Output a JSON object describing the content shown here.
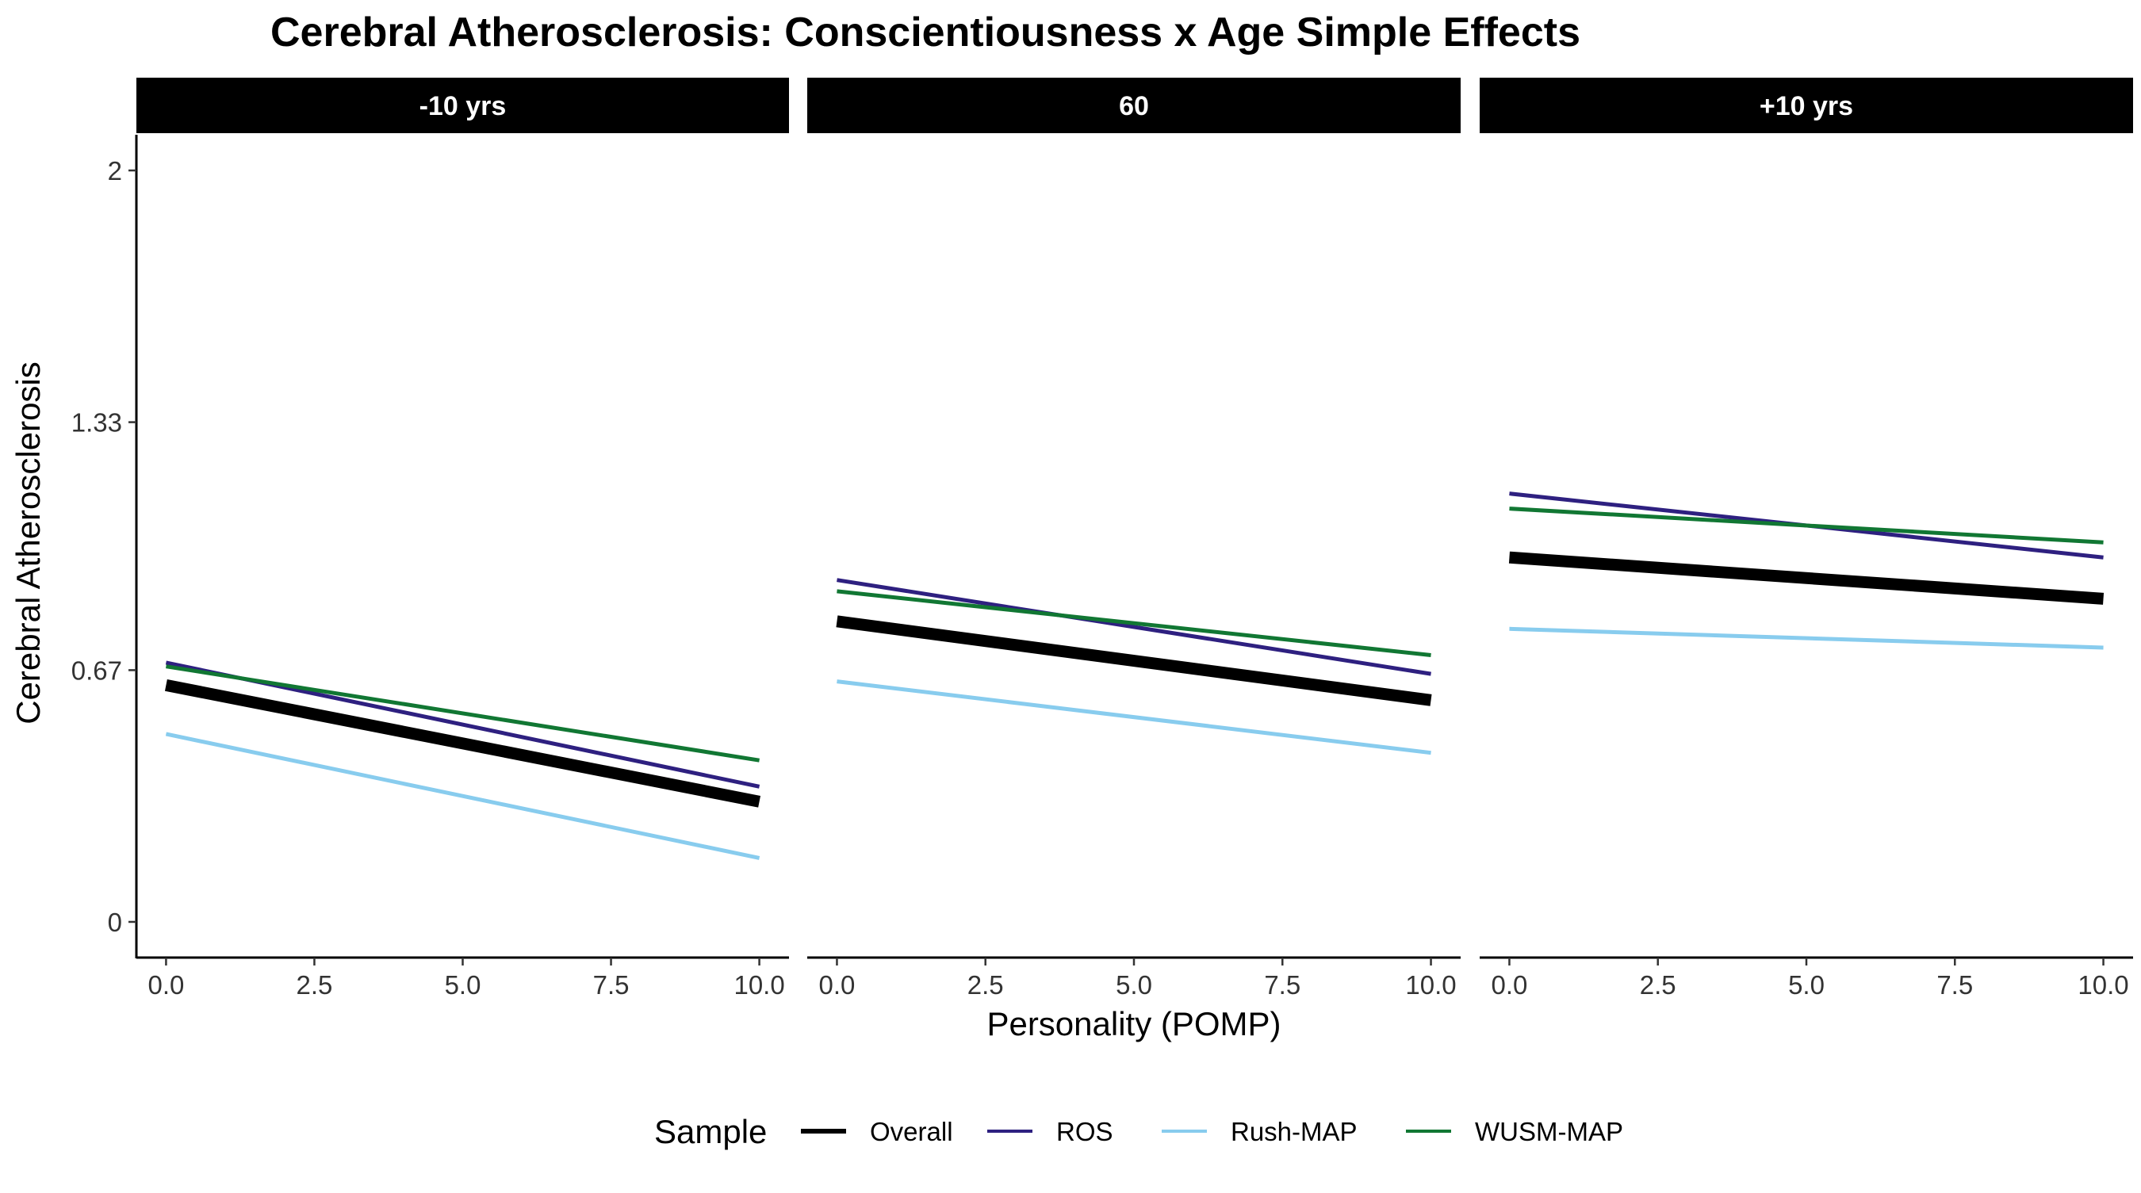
{
  "chart_data": {
    "type": "line",
    "title": "Cerebral Atherosclerosis: Conscientiousness x Age Simple Effects",
    "xlabel": "Personality (POMP)",
    "ylabel": "Cerebral Atherosclerosis",
    "xlim": [
      -0.5,
      10.5
    ],
    "ylim": [
      -0.095,
      2.095
    ],
    "x_ticks": [
      0,
      2.5,
      5,
      7.5,
      10
    ],
    "x_tick_labels": [
      "0.0",
      "2.5",
      "5.0",
      "7.5",
      "10.0"
    ],
    "y_ticks": [
      0,
      0.67,
      1.33,
      2
    ],
    "y_tick_labels": [
      "0",
      "0.67",
      "1.33",
      "2"
    ],
    "grid": false,
    "legend": {
      "title": "Sample",
      "position": "bottom",
      "entries": [
        "Overall",
        "ROS",
        "Rush-MAP",
        "WUSM-MAP"
      ]
    },
    "series_colors": {
      "Overall": "#000000",
      "ROS": "#2e2080",
      "Rush-MAP": "#88ccee",
      "WUSM-MAP": "#117733"
    },
    "series_thick": {
      "Overall": true,
      "ROS": false,
      "Rush-MAP": false,
      "WUSM-MAP": false
    },
    "panels": [
      {
        "label": "-10 yrs",
        "series": [
          {
            "name": "Overall",
            "x": [
              0,
              10
            ],
            "y": [
              0.63,
              0.32
            ]
          },
          {
            "name": "ROS",
            "x": [
              0,
              10
            ],
            "y": [
              0.69,
              0.36
            ]
          },
          {
            "name": "Rush-MAP",
            "x": [
              0,
              10
            ],
            "y": [
              0.5,
              0.17
            ]
          },
          {
            "name": "WUSM-MAP",
            "x": [
              0,
              10
            ],
            "y": [
              0.68,
              0.43
            ]
          }
        ]
      },
      {
        "label": "60",
        "series": [
          {
            "name": "Overall",
            "x": [
              0,
              10
            ],
            "y": [
              0.8,
              0.59
            ]
          },
          {
            "name": "ROS",
            "x": [
              0,
              10
            ],
            "y": [
              0.91,
              0.66
            ]
          },
          {
            "name": "Rush-MAP",
            "x": [
              0,
              10
            ],
            "y": [
              0.64,
              0.45
            ]
          },
          {
            "name": "WUSM-MAP",
            "x": [
              0,
              10
            ],
            "y": [
              0.88,
              0.71
            ]
          }
        ]
      },
      {
        "label": "+10 yrs",
        "series": [
          {
            "name": "Overall",
            "x": [
              0,
              10
            ],
            "y": [
              0.97,
              0.86
            ]
          },
          {
            "name": "ROS",
            "x": [
              0,
              10
            ],
            "y": [
              1.14,
              0.97
            ]
          },
          {
            "name": "Rush-MAP",
            "x": [
              0,
              10
            ],
            "y": [
              0.78,
              0.73
            ]
          },
          {
            "name": "WUSM-MAP",
            "x": [
              0,
              10
            ],
            "y": [
              1.1,
              1.01
            ]
          }
        ]
      }
    ]
  }
}
